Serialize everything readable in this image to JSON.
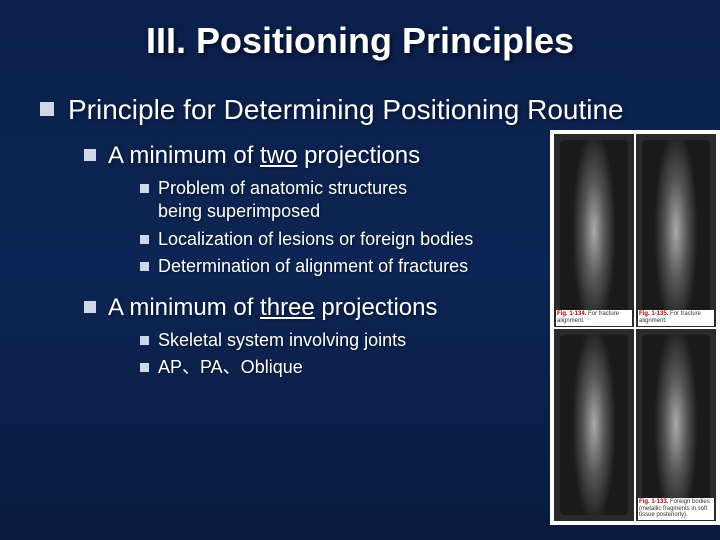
{
  "title": "III.  Positioning Principles",
  "l1": {
    "text": "Principle for Determining Positioning Routine"
  },
  "l2a": {
    "prefix": "A minimum of ",
    "underlined": "two",
    "suffix": " projections"
  },
  "l3a1_line1": "Problem of anatomic structures",
  "l3a1_line2": "being superimposed",
  "l3a2": "Localization of lesions or foreign bodies",
  "l3a3": "Determination of alignment of fractures",
  "l2b": {
    "prefix": "A minimum of ",
    "underlined": "three",
    "suffix": " projections"
  },
  "l3b1": "Skeletal system involving joints",
  "l3b2": "AP、PA、Oblique",
  "figures": {
    "top_left_label": "Fig. 1-134.",
    "top_left_text": "For fracture alignment.",
    "top_right_label": "Fig. 1-135.",
    "top_right_text": "For fracture alignment.",
    "bottom_label": "Fig. 1-133.",
    "bottom_text": "Foreign bodies (metallic fragments in soft tissue posteriorly)."
  },
  "colors": {
    "background_top": "#0a1f4a",
    "background_bottom": "#0a1a3e",
    "bullet_square": "#cfd8e8",
    "text": "#ffffff"
  }
}
